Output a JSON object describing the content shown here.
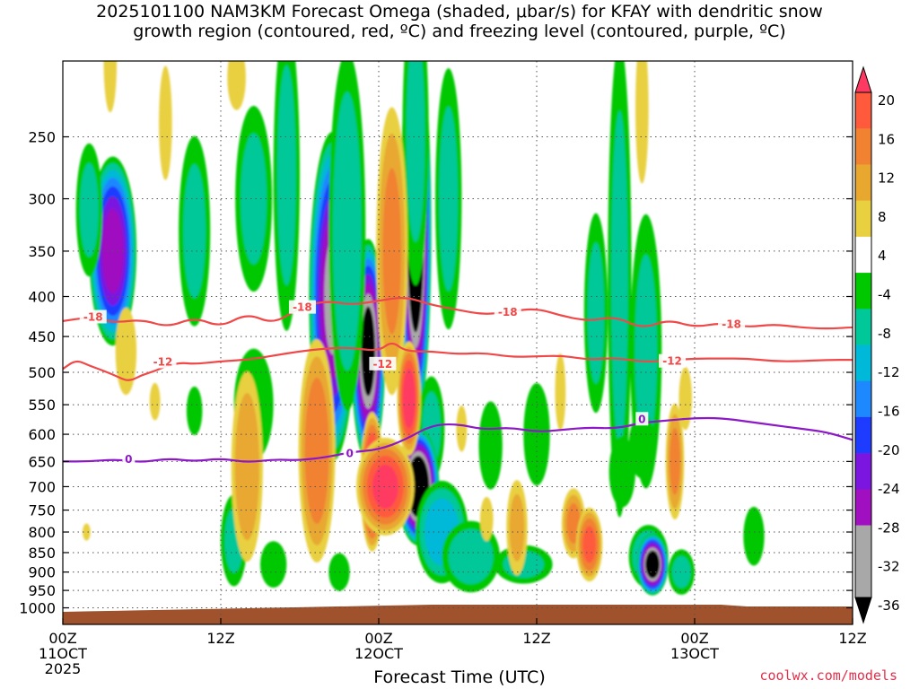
{
  "chart_data": {
    "type": "heatmap",
    "title_line1": "2025101100 NAM3KM Forecast Omega (shaded, μbar/s) for KFAY with dendritic snow",
    "title_line2": "growth region (contoured, red, ºC) and freezing level (contoured, purple, ºC)",
    "xlabel": "Forecast Time (UTC)",
    "credit": "coolwx.com/models",
    "y_axis": {
      "reversed": true,
      "range_hPa": [
        1050,
        200
      ],
      "ticks": [
        250,
        300,
        350,
        400,
        450,
        500,
        550,
        600,
        650,
        700,
        750,
        800,
        850,
        900,
        950,
        1000
      ]
    },
    "x_axis": {
      "range_hours": [
        0,
        60
      ],
      "ticks": [
        {
          "h": 0,
          "l1": "00Z",
          "l2": "11OCT",
          "l3": "2025"
        },
        {
          "h": 12,
          "l1": "12Z",
          "l2": "",
          "l3": ""
        },
        {
          "h": 24,
          "l1": "00Z",
          "l2": "12OCT",
          "l3": ""
        },
        {
          "h": 36,
          "l1": "12Z",
          "l2": "",
          "l3": ""
        },
        {
          "h": 48,
          "l1": "00Z",
          "l2": "13OCT",
          "l3": ""
        },
        {
          "h": 60,
          "l1": "12Z",
          "l2": "",
          "l3": ""
        }
      ]
    },
    "grid": true,
    "colorbar": {
      "labels": [
        "20",
        "16",
        "12",
        "8",
        "4",
        "-4",
        "-8",
        "-12",
        "-16",
        "-20",
        "-24",
        "-28",
        "-32",
        "-36"
      ],
      "colors": [
        "#ff3a62",
        "#ff5a3c",
        "#f08232",
        "#e8a830",
        "#e8d040",
        "#ffffff",
        "#00c800",
        "#00c898",
        "#00b8d8",
        "#1e88ff",
        "#1e3cff",
        "#7a16e0",
        "#a010c0",
        "#a8a8a8",
        "#000000"
      ]
    },
    "omega_blobs": [
      {
        "h": 3.8,
        "p": 350,
        "dh": 1.8,
        "dp": 95,
        "v": -30
      },
      {
        "h": 2.0,
        "p": 310,
        "dh": 1.0,
        "dp": 60,
        "v": -8
      },
      {
        "h": 10.0,
        "p": 330,
        "dh": 1.2,
        "dp": 90,
        "v": -8
      },
      {
        "h": 14.5,
        "p": 300,
        "dh": 1.4,
        "dp": 80,
        "v": -8
      },
      {
        "h": 17.0,
        "p": 280,
        "dh": 1.0,
        "dp": 120,
        "v": -8
      },
      {
        "h": 20.5,
        "p": 400,
        "dh": 1.8,
        "dp": 180,
        "v": -32
      },
      {
        "h": 23.2,
        "p": 470,
        "dh": 1.3,
        "dp": 150,
        "v": -38
      },
      {
        "h": 21.6,
        "p": 330,
        "dh": 1.4,
        "dp": 160,
        "v": -10
      },
      {
        "h": 26.8,
        "p": 330,
        "dh": 1.2,
        "dp": 170,
        "v": -44
      },
      {
        "h": 26.8,
        "p": 250,
        "dh": 1.0,
        "dp": 110,
        "v": -8
      },
      {
        "h": 29.3,
        "p": 300,
        "dh": 1.0,
        "dp": 110,
        "v": -8
      },
      {
        "h": 28.0,
        "p": 590,
        "dh": 1.0,
        "dp": 90,
        "v": -8
      },
      {
        "h": 27.0,
        "p": 700,
        "dh": 1.6,
        "dp": 120,
        "v": -44
      },
      {
        "h": 28.8,
        "p": 800,
        "dh": 2.0,
        "dp": 120,
        "v": -14
      },
      {
        "h": 31.0,
        "p": 860,
        "dh": 2.2,
        "dp": 90,
        "v": -10
      },
      {
        "h": 32.5,
        "p": 620,
        "dh": 0.9,
        "dp": 80,
        "v": -6
      },
      {
        "h": 36.0,
        "p": 600,
        "dh": 1.0,
        "dp": 90,
        "v": -6
      },
      {
        "h": 35.0,
        "p": 880,
        "dh": 2.2,
        "dp": 50,
        "v": -8
      },
      {
        "h": 40.5,
        "p": 420,
        "dh": 0.9,
        "dp": 120,
        "v": -8
      },
      {
        "h": 42.3,
        "p": 380,
        "dh": 0.9,
        "dp": 230,
        "v": -8
      },
      {
        "h": 44.3,
        "p": 470,
        "dh": 1.2,
        "dp": 180,
        "v": -8
      },
      {
        "h": 42.5,
        "p": 670,
        "dh": 1.0,
        "dp": 70,
        "v": -6
      },
      {
        "h": 44.5,
        "p": 860,
        "dh": 1.5,
        "dp": 80,
        "v": -12
      },
      {
        "h": 44.0,
        "p": 620,
        "dh": 1.0,
        "dp": 60,
        "v": -6
      },
      {
        "h": 44.8,
        "p": 880,
        "dh": 1.2,
        "dp": 80,
        "v": -40
      },
      {
        "h": 47.0,
        "p": 900,
        "dh": 1.0,
        "dp": 60,
        "v": -8
      },
      {
        "h": 52.5,
        "p": 810,
        "dh": 0.8,
        "dp": 70,
        "v": -6
      },
      {
        "h": 10.0,
        "p": 560,
        "dh": 0.6,
        "dp": 40,
        "v": -6
      },
      {
        "h": 13.0,
        "p": 820,
        "dh": 1.0,
        "dp": 110,
        "v": -8
      },
      {
        "h": 14.5,
        "p": 550,
        "dh": 1.5,
        "dp": 90,
        "v": -6
      },
      {
        "h": 16.0,
        "p": 880,
        "dh": 1.0,
        "dp": 60,
        "v": -6
      },
      {
        "h": 21.0,
        "p": 900,
        "dh": 0.8,
        "dp": 50,
        "v": -6
      },
      {
        "h": 4.8,
        "p": 470,
        "dh": 0.8,
        "dp": 60,
        "v": 6
      },
      {
        "h": 3.6,
        "p": 200,
        "dh": 0.5,
        "dp": 30,
        "v": 6
      },
      {
        "h": 7.8,
        "p": 240,
        "dh": 0.5,
        "dp": 40,
        "v": 6
      },
      {
        "h": 13.2,
        "p": 210,
        "dh": 0.7,
        "dp": 20,
        "v": 6
      },
      {
        "h": 14.0,
        "p": 660,
        "dh": 1.2,
        "dp": 180,
        "v": 10
      },
      {
        "h": 19.3,
        "p": 630,
        "dh": 1.4,
        "dp": 200,
        "v": 14
      },
      {
        "h": 23.5,
        "p": 690,
        "dh": 0.9,
        "dp": 140,
        "v": 24
      },
      {
        "h": 25.0,
        "p": 350,
        "dh": 1.2,
        "dp": 140,
        "v": 12
      },
      {
        "h": 24.5,
        "p": 700,
        "dh": 2.2,
        "dp": 100,
        "v": 20
      },
      {
        "h": 26.3,
        "p": 540,
        "dh": 0.9,
        "dp": 90,
        "v": 22
      },
      {
        "h": 34.5,
        "p": 790,
        "dh": 0.8,
        "dp": 110,
        "v": 8
      },
      {
        "h": 38.8,
        "p": 780,
        "dh": 0.9,
        "dp": 80,
        "v": 12
      },
      {
        "h": 40.0,
        "p": 830,
        "dh": 1.0,
        "dp": 90,
        "v": 16
      },
      {
        "h": 46.5,
        "p": 650,
        "dh": 0.7,
        "dp": 110,
        "v": 12
      },
      {
        "h": 47.3,
        "p": 540,
        "dh": 0.5,
        "dp": 50,
        "v": 6
      },
      {
        "h": 44.0,
        "p": 230,
        "dh": 0.5,
        "dp": 50,
        "v": 6
      },
      {
        "h": 37.8,
        "p": 530,
        "dh": 0.4,
        "dp": 60,
        "v": 6
      },
      {
        "h": 32.2,
        "p": 770,
        "dh": 0.5,
        "dp": 50,
        "v": 6
      },
      {
        "h": 30.3,
        "p": 590,
        "dh": 0.4,
        "dp": 40,
        "v": 6
      },
      {
        "h": 1.8,
        "p": 800,
        "dh": 0.3,
        "dp": 20,
        "v": 6
      },
      {
        "h": 7.0,
        "p": 545,
        "dh": 0.4,
        "dp": 30,
        "v": 6
      }
    ],
    "contours": [
      {
        "name": "-18",
        "color": "#f04848",
        "x": [
          0,
          2,
          4,
          6,
          8,
          10,
          12,
          14,
          16,
          18,
          20,
          22,
          24,
          26,
          28,
          30,
          32,
          34,
          36,
          38,
          40,
          42,
          44,
          46,
          48,
          50,
          52,
          54,
          56,
          58,
          60
        ],
        "y": [
          430,
          425,
          432,
          428,
          438,
          425,
          438,
          420,
          434,
          413,
          405,
          410,
          405,
          400,
          410,
          416,
          422,
          418,
          414,
          424,
          430,
          424,
          440,
          428,
          438,
          432,
          438,
          434,
          438,
          440,
          438
        ],
        "labels": [
          [
            2.3,
            425
          ],
          [
            18.2,
            413
          ],
          [
            33.8,
            419
          ],
          [
            50.8,
            434
          ]
        ]
      },
      {
        "name": "-12",
        "color": "#f04848",
        "x": [
          0,
          1,
          2,
          3,
          4,
          5,
          6,
          7,
          8,
          9,
          10,
          12,
          14,
          16,
          18,
          20,
          22,
          24,
          25,
          26,
          28,
          30,
          32,
          34,
          36,
          38,
          40,
          42,
          44,
          46,
          48,
          50,
          52,
          54,
          56,
          58,
          60
        ],
        "y": [
          495,
          482,
          490,
          497,
          505,
          514,
          504,
          498,
          490,
          486,
          488,
          484,
          482,
          476,
          470,
          466,
          465,
          470,
          456,
          470,
          470,
          474,
          472,
          478,
          477,
          476,
          482,
          479,
          485,
          483,
          480,
          480,
          480,
          484,
          484,
          482,
          482
        ],
        "labels": [
          [
            7.6,
            485
          ],
          [
            24.3,
            488
          ],
          [
            46.3,
            484
          ]
        ]
      },
      {
        "name": "0",
        "color": "#8c18c8",
        "x": [
          0,
          2,
          4,
          6,
          8,
          10,
          12,
          14,
          16,
          18,
          20,
          22,
          24,
          26,
          28,
          30,
          32,
          34,
          36,
          38,
          40,
          42,
          44,
          46,
          48,
          50,
          52,
          54,
          56,
          58,
          60
        ],
        "y": [
          650,
          650,
          646,
          652,
          644,
          650,
          644,
          652,
          646,
          648,
          642,
          632,
          628,
          610,
          584,
          582,
          592,
          588,
          596,
          592,
          588,
          590,
          580,
          576,
          572,
          572,
          578,
          584,
          590,
          596,
          610
        ],
        "labels": [
          [
            5.0,
            646
          ],
          [
            21.8,
            635
          ],
          [
            44.0,
            574
          ]
        ]
      }
    ]
  }
}
